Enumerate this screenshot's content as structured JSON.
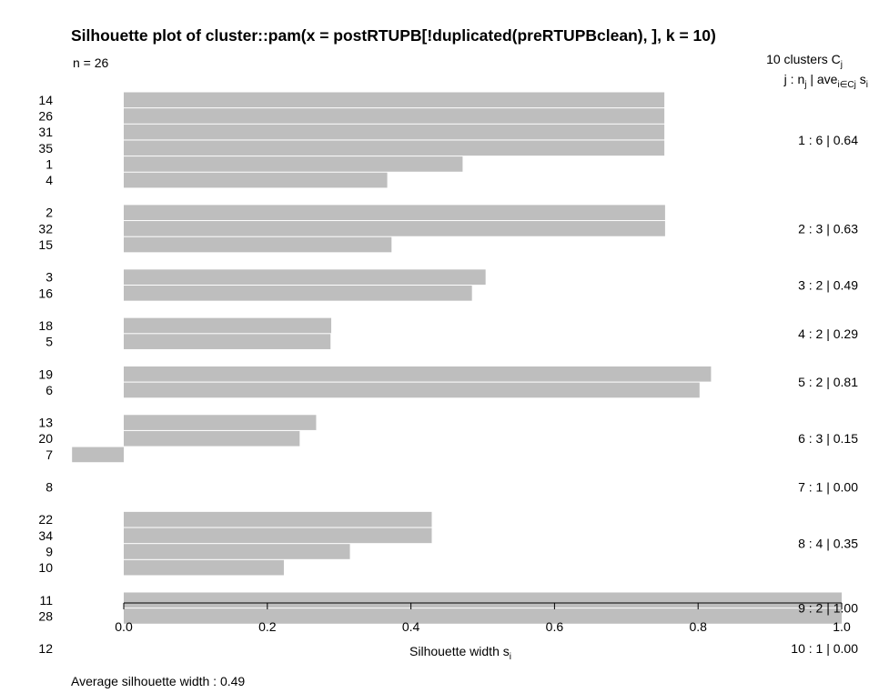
{
  "chart_data": {
    "type": "bar",
    "orientation": "horizontal",
    "title": "Silhouette plot of cluster::pam(x = postRTUPB[!duplicated(preRTUPBclean), ], k = 10)",
    "n_label": "n = 26",
    "header_clusters": "10  clusters  C",
    "header_clusters_sub": "j",
    "header_cols_j": "j :  n",
    "header_cols_j_sub": "j",
    "header_cols_ave": " | ave",
    "header_cols_ave_sub": "i∈Cj",
    "header_cols_s": "  s",
    "header_cols_s_sub": "i",
    "xlabel": "Silhouette width s",
    "xlabel_sub": "i",
    "average_label": "Average silhouette width :  0.49",
    "xlim": [
      -0.07,
      1.0
    ],
    "xticks": [
      "0.0",
      "0.2",
      "0.4",
      "0.6",
      "0.8",
      "1.0"
    ],
    "bar_color": "#bebebe",
    "clusters": [
      {
        "label": "1 :  6  |  0.64",
        "members": [
          {
            "obs": "14",
            "value": 0.753
          },
          {
            "obs": "26",
            "value": 0.753
          },
          {
            "obs": "31",
            "value": 0.753
          },
          {
            "obs": "35",
            "value": 0.753
          },
          {
            "obs": "1",
            "value": 0.472
          },
          {
            "obs": "4",
            "value": 0.367
          }
        ]
      },
      {
        "label": "2 :  3  |  0.63",
        "members": [
          {
            "obs": "2",
            "value": 0.754
          },
          {
            "obs": "32",
            "value": 0.754
          },
          {
            "obs": "15",
            "value": 0.373
          }
        ]
      },
      {
        "label": "3 :  2  |  0.49",
        "members": [
          {
            "obs": "3",
            "value": 0.504
          },
          {
            "obs": "16",
            "value": 0.485
          }
        ]
      },
      {
        "label": "4 :  2  |  0.29",
        "members": [
          {
            "obs": "18",
            "value": 0.289
          },
          {
            "obs": "5",
            "value": 0.288
          }
        ]
      },
      {
        "label": "5 :  2  |  0.81",
        "members": [
          {
            "obs": "19",
            "value": 0.818
          },
          {
            "obs": "6",
            "value": 0.802
          }
        ]
      },
      {
        "label": "6 :  3  |  0.15",
        "members": [
          {
            "obs": "13",
            "value": 0.268
          },
          {
            "obs": "20",
            "value": 0.245
          },
          {
            "obs": "7",
            "value": -0.072
          }
        ]
      },
      {
        "label": "7 :  1  |  0.00",
        "members": [
          {
            "obs": "8",
            "value": 0.0
          }
        ]
      },
      {
        "label": "8 :  4  |  0.35",
        "members": [
          {
            "obs": "22",
            "value": 0.429
          },
          {
            "obs": "34",
            "value": 0.429
          },
          {
            "obs": "9",
            "value": 0.315
          },
          {
            "obs": "10",
            "value": 0.223
          }
        ]
      },
      {
        "label": "9 :  2  |  1.00",
        "members": [
          {
            "obs": "11",
            "value": 1.0
          },
          {
            "obs": "28",
            "value": 1.0
          }
        ]
      },
      {
        "label": "10 :  1  |  0.00",
        "members": [
          {
            "obs": "12",
            "value": 0.0
          }
        ]
      }
    ]
  }
}
